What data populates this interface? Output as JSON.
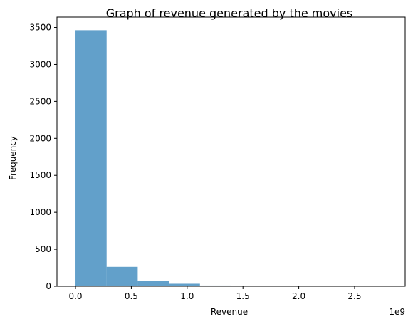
{
  "chart_data": {
    "type": "bar",
    "title": "Graph of revenue generated by the movies",
    "xlabel": "Revenue",
    "ylabel": "Frequency",
    "x_offset_label": "1e9",
    "x_scale_factor": 1000000000,
    "xlim": [
      -166000000,
      2953000000
    ],
    "ylim": [
      0,
      3640
    ],
    "x_ticks": [
      0,
      500000000,
      1000000000,
      1500000000,
      2000000000,
      2500000000
    ],
    "x_tick_labels": [
      "0.0",
      "0.5",
      "1.0",
      "1.5",
      "2.0",
      "2.5"
    ],
    "y_ticks": [
      0,
      500,
      1000,
      1500,
      2000,
      2500,
      3000,
      3500
    ],
    "y_tick_labels": [
      "0",
      "500",
      "1000",
      "1500",
      "2000",
      "2500",
      "3000",
      "3500"
    ],
    "bins": [
      {
        "x_start": 0,
        "x_end": 278700000,
        "value": 3463
      },
      {
        "x_start": 278700000,
        "x_end": 557400000,
        "value": 262
      },
      {
        "x_start": 557400000,
        "x_end": 836100000,
        "value": 76
      },
      {
        "x_start": 836100000,
        "x_end": 1114800000,
        "value": 34
      },
      {
        "x_start": 1114800000,
        "x_end": 1393500000,
        "value": 10
      },
      {
        "x_start": 1393500000,
        "x_end": 1672200000,
        "value": 6
      },
      {
        "x_start": 1672200000,
        "x_end": 1950900000,
        "value": 2
      },
      {
        "x_start": 1950900000,
        "x_end": 2229600000,
        "value": 1
      },
      {
        "x_start": 2229600000,
        "x_end": 2508300000,
        "value": 0
      },
      {
        "x_start": 2508300000,
        "x_end": 2787000000,
        "value": 1
      }
    ],
    "grid": false,
    "legend": "none",
    "colors": {
      "bar": "#1f77b4"
    }
  }
}
